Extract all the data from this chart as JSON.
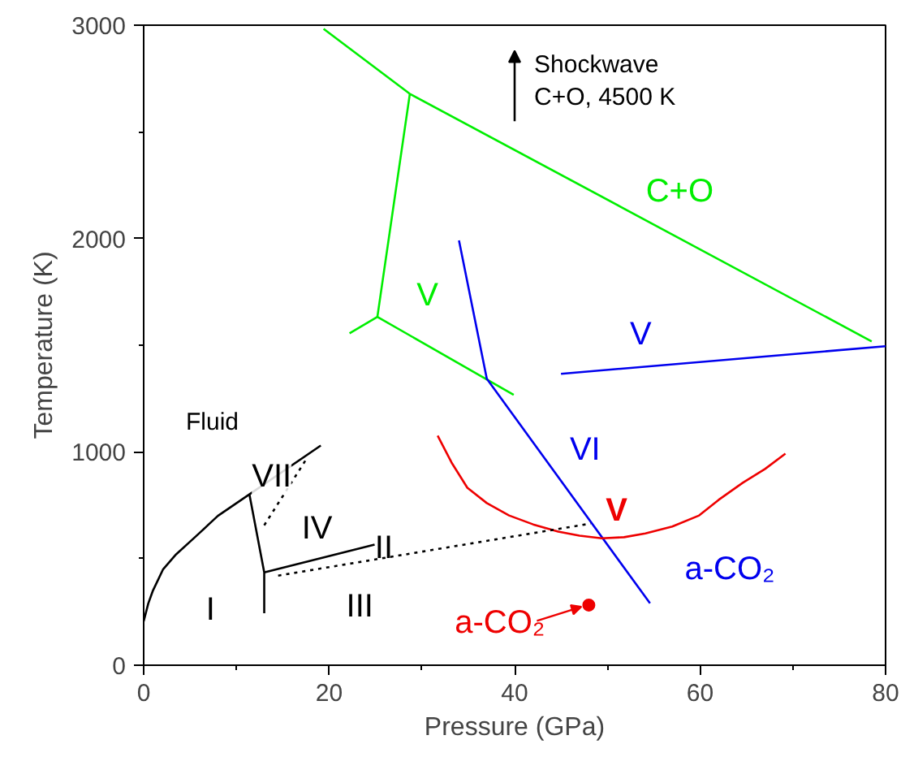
{
  "chart_data": {
    "type": "line",
    "xlabel": "Pressure (GPa)",
    "ylabel": "Temperature (K)",
    "xlim": [
      0,
      80
    ],
    "ylim": [
      0,
      3000
    ],
    "xticks": [
      0,
      20,
      40,
      60,
      80
    ],
    "yticks": [
      0,
      1000,
      2000,
      3000
    ],
    "grid": false,
    "marker": "none",
    "series": [
      {
        "color": "#00ee00",
        "x": [
          19.4,
          28.7,
          78.5
        ],
        "values": [
          2983,
          2678,
          1518
        ]
      },
      {
        "color": "#00ee00",
        "x": [
          28.7,
          25.2
        ],
        "values": [
          2678,
          1633
        ]
      },
      {
        "color": "#00ee00",
        "x": [
          22.2,
          25.2,
          39.9
        ],
        "values": [
          1556,
          1633,
          1267
        ]
      },
      {
        "color": "#0000ee",
        "x": [
          34.0,
          37.0,
          54.6
        ],
        "values": [
          1991,
          1343,
          290
        ]
      },
      {
        "color": "#0000ee",
        "x": [
          45.0,
          80.0
        ],
        "values": [
          1366,
          1495
        ]
      },
      {
        "color": "#ee0000",
        "x": [
          31.7,
          33.2,
          34.9,
          37.0,
          39.4,
          42.0,
          44.7,
          47.0,
          49.4,
          51.8,
          54.1,
          57.0,
          59.9,
          62.0,
          64.6,
          67.0,
          69.2
        ],
        "values": [
          1076,
          950,
          832,
          760,
          702,
          660,
          626,
          607,
          595,
          600,
          618,
          650,
          702,
          775,
          855,
          920,
          992
        ]
      },
      {
        "color": "#000000",
        "x": [
          0,
          0.5,
          1.0,
          2.1,
          3.5,
          5.6,
          8.0,
          11.4,
          19.1
        ],
        "values": [
          206,
          290,
          350,
          450,
          520,
          603,
          700,
          801,
          1030
        ]
      },
      {
        "color": "#000000",
        "x": [
          11.4,
          13.0,
          13.0
        ],
        "values": [
          801,
          435,
          244
        ]
      },
      {
        "color": "#000000",
        "x": [
          13.0,
          24.9
        ],
        "values": [
          435,
          565
        ]
      },
      {
        "color": "#000000",
        "line_style": "dotted",
        "x": [
          14.5,
          48.2
        ],
        "values": [
          420,
          664
        ]
      },
      {
        "color": "#000000",
        "line_style": "dotted",
        "x": [
          13.0,
          17.7
        ],
        "values": [
          656,
          977
        ]
      },
      {
        "type": "scatter",
        "marker": "circle",
        "color": "#ee0000",
        "x": [
          48.0
        ],
        "values": [
          282
        ]
      }
    ],
    "annotations": [
      "Fluid",
      "VII",
      "IV",
      "II",
      "I",
      "III",
      "V",
      "C+O",
      "V",
      "VI",
      "V",
      "a-CO₂",
      {
        "text": "a-CO₂",
        "x": 48.0,
        "y": 282
      },
      "Shockwave\nC+O, 4500 K"
    ]
  }
}
